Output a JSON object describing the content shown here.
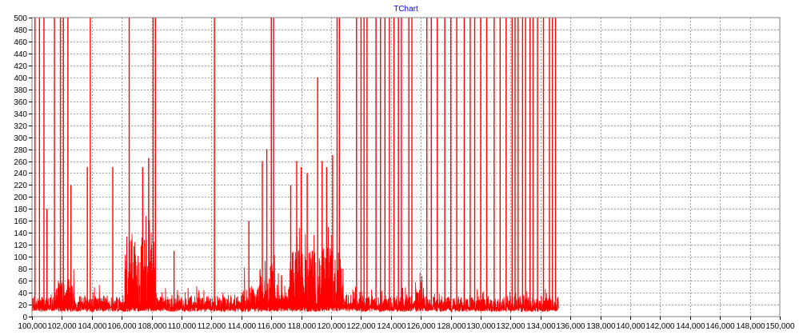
{
  "chart_data": {
    "type": "line",
    "title": "TChart",
    "xlim": [
      100000,
      150000
    ],
    "ylim": [
      0,
      500
    ],
    "x_ticks": [
      100000,
      102000,
      104000,
      106000,
      108000,
      110000,
      112000,
      114000,
      116000,
      118000,
      120000,
      122000,
      124000,
      126000,
      128000,
      130000,
      132000,
      134000,
      136000,
      138000,
      140000,
      142000,
      144000,
      146000,
      148000,
      150000
    ],
    "x_tick_labels": [
      "100,000",
      "102,000",
      "104,000",
      "106,000",
      "108,000",
      "110,000",
      "112,000",
      "114,000",
      "116,000",
      "118,000",
      "120,000",
      "122,000",
      "124,000",
      "126,000",
      "128,000",
      "130,000",
      "132,000",
      "134,000",
      "136,000",
      "138,000",
      "140,000",
      "142,000",
      "144,000",
      "146,000",
      "148,000",
      "150,000"
    ],
    "y_ticks": [
      0,
      20,
      40,
      60,
      80,
      100,
      120,
      140,
      160,
      180,
      200,
      220,
      240,
      260,
      280,
      300,
      320,
      340,
      360,
      380,
      400,
      420,
      440,
      460,
      480,
      500
    ],
    "y_tick_labels": [
      "0",
      "20",
      "40",
      "60",
      "80",
      "100",
      "120",
      "140",
      "160",
      "180",
      "200",
      "220",
      "240",
      "260",
      "280",
      "300",
      "320",
      "340",
      "360",
      "380",
      "400",
      "420",
      "440",
      "460",
      "480",
      "500"
    ],
    "grid": true,
    "grid_style": "dashed",
    "series": [
      {
        "color": "#ff0000",
        "x_range": [
          100000,
          135200
        ],
        "baseline": 20,
        "segments": [
          {
            "x0": 100000,
            "x1": 101500,
            "typical": 30
          },
          {
            "x0": 101500,
            "x1": 102800,
            "typical": 60
          },
          {
            "x0": 102800,
            "x1": 106200,
            "typical": 30
          },
          {
            "x0": 106200,
            "x1": 108200,
            "typical": 130
          },
          {
            "x0": 108200,
            "x1": 113800,
            "typical": 30
          },
          {
            "x0": 113800,
            "x1": 115200,
            "typical": 45
          },
          {
            "x0": 115200,
            "x1": 116500,
            "typical": 90
          },
          {
            "x0": 116500,
            "x1": 117200,
            "typical": 40
          },
          {
            "x0": 117200,
            "x1": 120800,
            "typical": 110
          },
          {
            "x0": 120800,
            "x1": 125600,
            "typical": 30
          },
          {
            "x0": 125600,
            "x1": 126200,
            "typical": 60
          },
          {
            "x0": 126200,
            "x1": 135200,
            "typical": 28
          }
        ],
        "peaks": [
          {
            "x": 100200,
            "y": 500
          },
          {
            "x": 100500,
            "y": 500
          },
          {
            "x": 100800,
            "y": 500
          },
          {
            "x": 101000,
            "y": 180
          },
          {
            "x": 101500,
            "y": 500
          },
          {
            "x": 101900,
            "y": 500
          },
          {
            "x": 102100,
            "y": 500
          },
          {
            "x": 102400,
            "y": 500
          },
          {
            "x": 102600,
            "y": 220
          },
          {
            "x": 103700,
            "y": 250
          },
          {
            "x": 103900,
            "y": 500
          },
          {
            "x": 105400,
            "y": 250
          },
          {
            "x": 106500,
            "y": 500
          },
          {
            "x": 107400,
            "y": 250
          },
          {
            "x": 107800,
            "y": 265
          },
          {
            "x": 108100,
            "y": 500
          },
          {
            "x": 108250,
            "y": 500
          },
          {
            "x": 109500,
            "y": 110
          },
          {
            "x": 112200,
            "y": 500
          },
          {
            "x": 114500,
            "y": 160
          },
          {
            "x": 115400,
            "y": 260
          },
          {
            "x": 115700,
            "y": 280
          },
          {
            "x": 116000,
            "y": 500
          },
          {
            "x": 116150,
            "y": 500
          },
          {
            "x": 117300,
            "y": 220
          },
          {
            "x": 117700,
            "y": 260
          },
          {
            "x": 118000,
            "y": 250
          },
          {
            "x": 118400,
            "y": 240
          },
          {
            "x": 119100,
            "y": 400
          },
          {
            "x": 119400,
            "y": 260
          },
          {
            "x": 119700,
            "y": 250
          },
          {
            "x": 120100,
            "y": 270
          },
          {
            "x": 120400,
            "y": 500
          },
          {
            "x": 120550,
            "y": 500
          },
          {
            "x": 121700,
            "y": 500
          },
          {
            "x": 122000,
            "y": 500
          },
          {
            "x": 122200,
            "y": 500
          },
          {
            "x": 122400,
            "y": 500
          },
          {
            "x": 123000,
            "y": 500
          },
          {
            "x": 123300,
            "y": 500
          },
          {
            "x": 123600,
            "y": 500
          },
          {
            "x": 123900,
            "y": 500
          },
          {
            "x": 124200,
            "y": 500
          },
          {
            "x": 124500,
            "y": 500
          },
          {
            "x": 124700,
            "y": 500
          },
          {
            "x": 125200,
            "y": 500
          },
          {
            "x": 125400,
            "y": 500
          },
          {
            "x": 126400,
            "y": 500
          },
          {
            "x": 126700,
            "y": 500
          },
          {
            "x": 127100,
            "y": 500
          },
          {
            "x": 127600,
            "y": 500
          },
          {
            "x": 128000,
            "y": 500
          },
          {
            "x": 128400,
            "y": 500
          },
          {
            "x": 128900,
            "y": 500
          },
          {
            "x": 129300,
            "y": 500
          },
          {
            "x": 129600,
            "y": 500
          },
          {
            "x": 130000,
            "y": 500
          },
          {
            "x": 130400,
            "y": 500
          },
          {
            "x": 130900,
            "y": 500
          },
          {
            "x": 131300,
            "y": 500
          },
          {
            "x": 131700,
            "y": 500
          },
          {
            "x": 132100,
            "y": 500
          },
          {
            "x": 132300,
            "y": 500
          },
          {
            "x": 132500,
            "y": 500
          },
          {
            "x": 132800,
            "y": 500
          },
          {
            "x": 133000,
            "y": 500
          },
          {
            "x": 133300,
            "y": 500
          },
          {
            "x": 133500,
            "y": 500
          },
          {
            "x": 133800,
            "y": 500
          },
          {
            "x": 134200,
            "y": 500
          },
          {
            "x": 134600,
            "y": 500
          },
          {
            "x": 134800,
            "y": 500
          },
          {
            "x": 135000,
            "y": 500
          }
        ]
      }
    ]
  }
}
